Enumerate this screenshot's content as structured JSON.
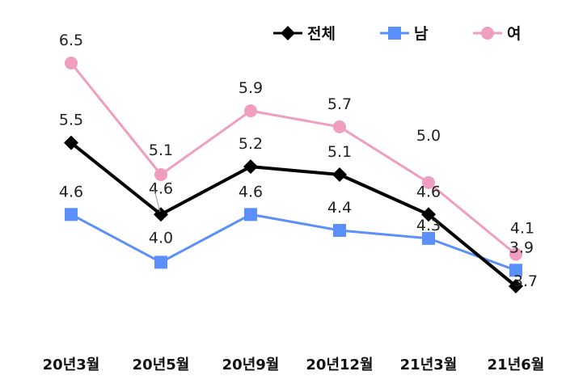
{
  "chart_data": {
    "type": "line",
    "title": "",
    "xlabel": "",
    "ylabel": "",
    "categories": [
      "20년3월",
      "20년5월",
      "20년9월",
      "20년12월",
      "21년3월",
      "21년6월"
    ],
    "ylim": [
      2.0,
      7.0
    ],
    "grid": false,
    "legend_position": "top-right",
    "series": [
      {
        "name": "전체",
        "color": "#000000",
        "marker": "diamond",
        "values": [
          5.5,
          4.6,
          5.2,
          5.1,
          4.6,
          3.7
        ]
      },
      {
        "name": "남",
        "color": "#5b8ff9",
        "marker": "square",
        "values": [
          4.6,
          4.0,
          4.6,
          4.4,
          4.3,
          3.9
        ]
      },
      {
        "name": "여",
        "color": "#f09ec0",
        "marker": "circle",
        "values": [
          6.5,
          5.1,
          5.9,
          5.7,
          5.0,
          4.1
        ]
      }
    ],
    "value_label_text": [
      [
        "5.5",
        "4.6",
        "5.2",
        "5.1",
        "4.6",
        "3.7"
      ],
      [
        "4.6",
        "4.0",
        "4.6",
        "4.4",
        "4.3",
        "3.9"
      ],
      [
        "6.5",
        "5.1",
        "5.9",
        "5.7",
        "5.0",
        "4.1"
      ]
    ]
  }
}
